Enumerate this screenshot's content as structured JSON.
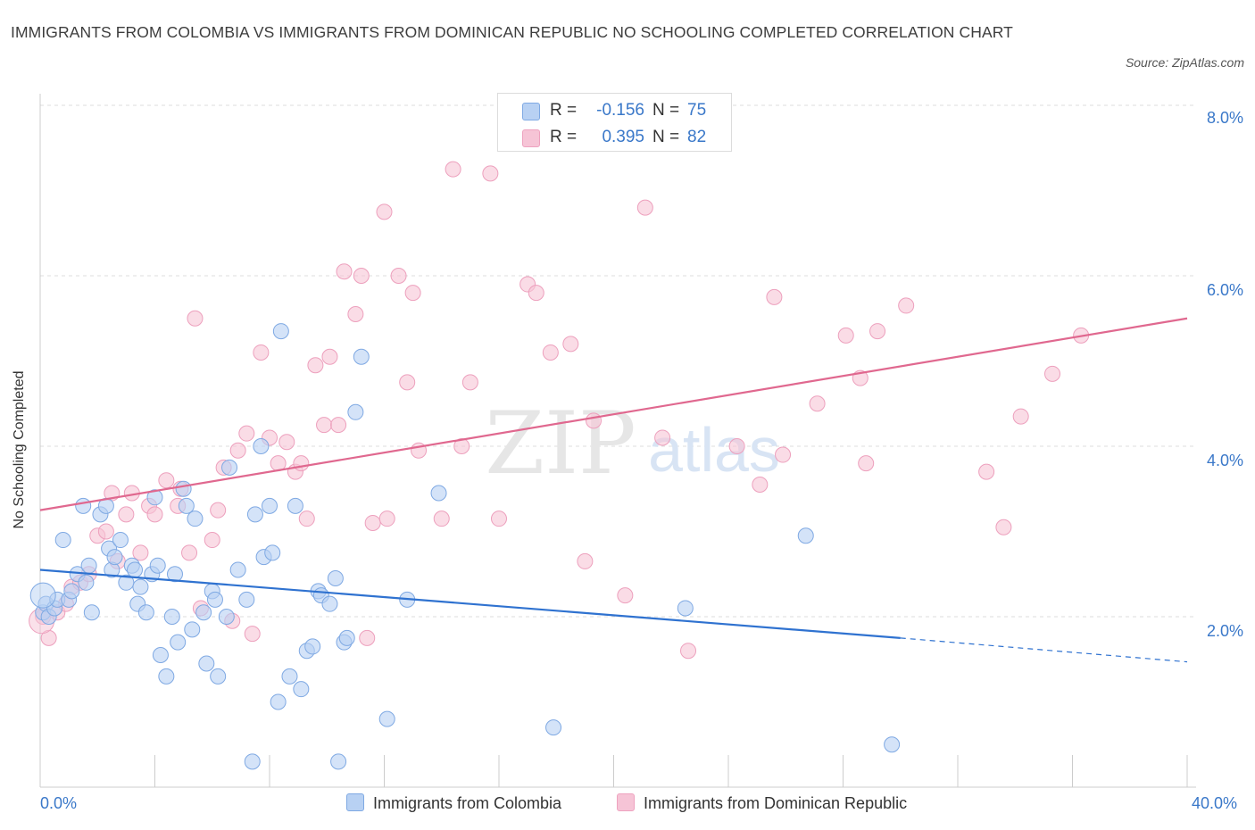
{
  "title": "IMMIGRANTS FROM COLOMBIA VS IMMIGRANTS FROM DOMINICAN REPUBLIC NO SCHOOLING COMPLETED CORRELATION CHART",
  "source": "Source: ZipAtlas.com",
  "watermark": {
    "zip": "ZIP",
    "atlas": "atlas"
  },
  "colors": {
    "blue": "#4a86d8",
    "blue_fill": "#b8d1f3",
    "pink": "#e36b98",
    "pink_fill": "#f6c4d6",
    "tick_text": "#3a78c9",
    "grid": "#dddddd"
  },
  "legend": {
    "rows": [
      {
        "r_label": "R =",
        "r_value": "-0.156",
        "n_label": "N =",
        "n_value": "75"
      },
      {
        "r_label": "R =",
        "r_value": "0.395",
        "n_label": "N =",
        "n_value": "82"
      }
    ]
  },
  "bottom_legend": {
    "blue": "Immigrants from Colombia",
    "pink": "Immigrants from Dominican Republic"
  },
  "chart_data": {
    "type": "scatter",
    "title": "IMMIGRANTS FROM COLOMBIA VS IMMIGRANTS FROM DOMINICAN REPUBLIC NO SCHOOLING COMPLETED CORRELATION CHART",
    "xlabel": "",
    "ylabel": "No Schooling Completed",
    "xlim": [
      0,
      40
    ],
    "ylim": [
      0,
      8
    ],
    "x_tick_labels": [
      "0.0%",
      "40.0%"
    ],
    "y_tick_labels": [
      "2.0%",
      "4.0%",
      "6.0%",
      "8.0%"
    ],
    "y_ticks": [
      2,
      4,
      6,
      8
    ],
    "grid": true,
    "legend_position": "top-center",
    "series": [
      {
        "name": "Immigrants from Colombia",
        "color": "#4a86d8",
        "trend": {
          "x": [
            0,
            30
          ],
          "y": [
            2.55,
            1.75
          ],
          "dashed_to": [
            40,
            1.47
          ]
        },
        "points": [
          [
            0.1,
            2.05
          ],
          [
            0.2,
            2.15
          ],
          [
            0.3,
            2.0
          ],
          [
            0.5,
            2.1
          ],
          [
            0.6,
            2.2
          ],
          [
            0.8,
            2.9
          ],
          [
            1.0,
            2.2
          ],
          [
            1.1,
            2.3
          ],
          [
            1.3,
            2.5
          ],
          [
            1.5,
            3.3
          ],
          [
            1.6,
            2.4
          ],
          [
            1.7,
            2.6
          ],
          [
            1.8,
            2.05
          ],
          [
            2.1,
            3.2
          ],
          [
            2.3,
            3.3
          ],
          [
            2.4,
            2.8
          ],
          [
            2.5,
            2.55
          ],
          [
            2.6,
            2.7
          ],
          [
            2.8,
            2.9
          ],
          [
            3.0,
            2.4
          ],
          [
            3.2,
            2.6
          ],
          [
            3.3,
            2.55
          ],
          [
            3.4,
            2.15
          ],
          [
            3.5,
            2.35
          ],
          [
            3.7,
            2.05
          ],
          [
            3.9,
            2.5
          ],
          [
            4.0,
            3.4
          ],
          [
            4.1,
            2.6
          ],
          [
            4.2,
            1.55
          ],
          [
            4.4,
            1.3
          ],
          [
            4.6,
            2.0
          ],
          [
            4.7,
            2.5
          ],
          [
            4.8,
            1.7
          ],
          [
            5.0,
            3.5
          ],
          [
            5.1,
            3.3
          ],
          [
            5.3,
            1.85
          ],
          [
            5.4,
            3.15
          ],
          [
            5.7,
            2.05
          ],
          [
            5.8,
            1.45
          ],
          [
            6.0,
            2.3
          ],
          [
            6.1,
            2.2
          ],
          [
            6.2,
            1.3
          ],
          [
            6.5,
            2.0
          ],
          [
            6.6,
            3.75
          ],
          [
            6.9,
            2.55
          ],
          [
            7.2,
            2.2
          ],
          [
            7.4,
            0.3
          ],
          [
            7.5,
            3.2
          ],
          [
            7.7,
            4.0
          ],
          [
            7.8,
            2.7
          ],
          [
            8.0,
            3.3
          ],
          [
            8.1,
            2.75
          ],
          [
            8.3,
            1.0
          ],
          [
            8.4,
            5.35
          ],
          [
            8.7,
            1.3
          ],
          [
            8.9,
            3.3
          ],
          [
            9.1,
            1.15
          ],
          [
            9.3,
            1.6
          ],
          [
            9.5,
            1.65
          ],
          [
            9.7,
            2.3
          ],
          [
            9.8,
            2.25
          ],
          [
            10.1,
            2.15
          ],
          [
            10.3,
            2.45
          ],
          [
            10.4,
            0.3
          ],
          [
            10.6,
            1.7
          ],
          [
            10.7,
            1.75
          ],
          [
            11.0,
            4.4
          ],
          [
            11.2,
            5.05
          ],
          [
            12.1,
            0.8
          ],
          [
            12.8,
            2.2
          ],
          [
            13.9,
            3.45
          ],
          [
            17.9,
            0.7
          ],
          [
            22.5,
            2.1
          ],
          [
            26.7,
            2.95
          ],
          [
            29.7,
            0.5
          ]
        ]
      },
      {
        "name": "Immigrants from Dominican Republic",
        "color": "#e36b98",
        "trend": {
          "x": [
            0,
            40
          ],
          "y": [
            3.25,
            5.5
          ]
        },
        "points": [
          [
            0.1,
            2.0
          ],
          [
            0.3,
            1.75
          ],
          [
            0.6,
            2.05
          ],
          [
            0.9,
            2.15
          ],
          [
            1.1,
            2.35
          ],
          [
            1.4,
            2.4
          ],
          [
            1.7,
            2.5
          ],
          [
            2.0,
            2.95
          ],
          [
            2.3,
            3.0
          ],
          [
            2.5,
            3.45
          ],
          [
            2.7,
            2.65
          ],
          [
            3.0,
            3.2
          ],
          [
            3.2,
            3.45
          ],
          [
            3.5,
            2.75
          ],
          [
            3.8,
            3.3
          ],
          [
            4.0,
            3.2
          ],
          [
            4.4,
            3.6
          ],
          [
            4.8,
            3.3
          ],
          [
            4.9,
            3.5
          ],
          [
            5.2,
            2.75
          ],
          [
            5.4,
            5.5
          ],
          [
            5.6,
            2.1
          ],
          [
            6.0,
            2.9
          ],
          [
            6.2,
            3.25
          ],
          [
            6.4,
            3.75
          ],
          [
            6.7,
            1.95
          ],
          [
            6.9,
            3.95
          ],
          [
            7.2,
            4.15
          ],
          [
            7.4,
            1.8
          ],
          [
            7.7,
            5.1
          ],
          [
            8.0,
            4.1
          ],
          [
            8.3,
            3.8
          ],
          [
            8.6,
            4.05
          ],
          [
            8.9,
            3.7
          ],
          [
            9.1,
            3.8
          ],
          [
            9.3,
            3.15
          ],
          [
            9.6,
            4.95
          ],
          [
            9.9,
            4.25
          ],
          [
            10.1,
            5.05
          ],
          [
            10.4,
            4.25
          ],
          [
            10.6,
            6.05
          ],
          [
            11.0,
            5.55
          ],
          [
            11.2,
            6.0
          ],
          [
            11.4,
            1.75
          ],
          [
            11.6,
            3.1
          ],
          [
            12.0,
            6.75
          ],
          [
            12.1,
            3.15
          ],
          [
            12.5,
            6.0
          ],
          [
            12.8,
            4.75
          ],
          [
            13.0,
            5.8
          ],
          [
            13.2,
            3.95
          ],
          [
            14.0,
            3.15
          ],
          [
            14.4,
            7.25
          ],
          [
            14.7,
            4.0
          ],
          [
            15.0,
            4.75
          ],
          [
            15.7,
            7.2
          ],
          [
            16.0,
            3.15
          ],
          [
            17.0,
            5.9
          ],
          [
            17.3,
            5.8
          ],
          [
            17.8,
            5.1
          ],
          [
            18.5,
            5.2
          ],
          [
            19.0,
            2.65
          ],
          [
            19.3,
            4.3
          ],
          [
            20.4,
            2.25
          ],
          [
            21.1,
            6.8
          ],
          [
            21.7,
            4.1
          ],
          [
            22.6,
            1.6
          ],
          [
            24.3,
            4.0
          ],
          [
            25.1,
            3.55
          ],
          [
            25.6,
            5.75
          ],
          [
            25.9,
            3.9
          ],
          [
            27.1,
            4.5
          ],
          [
            28.1,
            5.3
          ],
          [
            28.6,
            4.8
          ],
          [
            28.8,
            3.8
          ],
          [
            29.2,
            5.35
          ],
          [
            30.2,
            5.65
          ],
          [
            33.0,
            3.7
          ],
          [
            33.6,
            3.05
          ],
          [
            34.2,
            4.35
          ],
          [
            35.3,
            4.85
          ],
          [
            36.3,
            5.3
          ]
        ]
      }
    ]
  }
}
